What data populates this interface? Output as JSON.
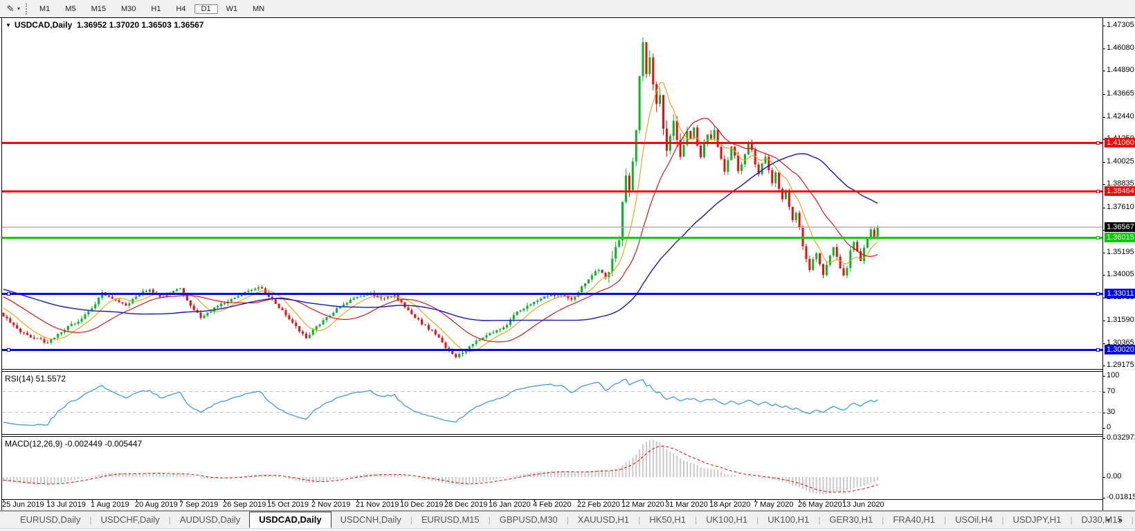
{
  "toolbar": {
    "tool_icon": "drawing-tool",
    "timeframes": [
      {
        "label": "M1",
        "active": false
      },
      {
        "label": "M5",
        "active": false
      },
      {
        "label": "M15",
        "active": false
      },
      {
        "label": "M30",
        "active": false
      },
      {
        "label": "H1",
        "active": false
      },
      {
        "label": "H4",
        "active": false
      },
      {
        "label": "D1",
        "active": true
      },
      {
        "label": "W1",
        "active": false
      },
      {
        "label": "MN",
        "active": false
      }
    ]
  },
  "chart": {
    "symbol_title": "USDCAD,Daily",
    "quotes": "1.36952 1.37020 1.36503 1.36567"
  },
  "price_axis": {
    "ticks": [
      "1.47305",
      "1.46080",
      "1.44890",
      "1.43665",
      "1.42440",
      "1.41250",
      "1.40025",
      "1.38835",
      "1.37610",
      "1.36420",
      "1.35195",
      "1.34005",
      "1.32780",
      "1.31590",
      "1.30365",
      "1.29175"
    ],
    "flags": [
      {
        "label": "1.41060",
        "price": 1.4106,
        "bg": "#ff0000",
        "fg": "#ffffff"
      },
      {
        "label": "1.38464",
        "price": 1.38464,
        "bg": "#ff0000",
        "fg": "#ffffff"
      },
      {
        "label": "1.36567",
        "price": 1.36567,
        "bg": "#000000",
        "fg": "#ffffff"
      },
      {
        "label": "1.36015",
        "price": 1.36015,
        "bg": "#00cc00",
        "fg": "#ffffff"
      },
      {
        "label": "1.33011",
        "price": 1.33011,
        "bg": "#0000ff",
        "fg": "#ffffff"
      },
      {
        "label": "1.30020",
        "price": 1.3002,
        "bg": "#0000ff",
        "fg": "#ffffff"
      }
    ]
  },
  "panels": {
    "rsi": {
      "header": "RSI(14) 51.5572",
      "ticks": [
        {
          "label": "100",
          "value": 100
        },
        {
          "label": "70",
          "value": 70
        },
        {
          "label": "30",
          "value": 30
        },
        {
          "label": "0",
          "value": 0
        }
      ]
    },
    "macd": {
      "header": "MACD(12,26,9) -0.002449 -0.005447",
      "ticks": [
        {
          "label": "0.032972",
          "value": 0.032972
        },
        {
          "label": "0.00",
          "value": 0
        },
        {
          "label": "-0.018154",
          "value": -0.018154
        }
      ]
    }
  },
  "date_axis": [
    "25 Jun 2019",
    "13 Jul 2019",
    "1 Aug 2019",
    "20 Aug 2019",
    "7 Sep 2019",
    "26 Sep 2019",
    "15 Oct 2019",
    "2 Nov 2019",
    "21 Nov 2019",
    "10 Dec 2019",
    "28 Dec 2019",
    "16 Jan 2020",
    "4 Feb 2020",
    "22 Feb 2020",
    "12 Mar 2020",
    "31 Mar 2020",
    "18 Apr 2020",
    "7 May 2020",
    "26 May 2020",
    "13 Jun 2020"
  ],
  "tabs": {
    "items": [
      {
        "label": "EURUSD,Daily",
        "active": false
      },
      {
        "label": "USDCHF,Daily",
        "active": false
      },
      {
        "label": "AUDUSD,Daily",
        "active": false
      },
      {
        "label": "USDCAD,Daily",
        "active": true
      },
      {
        "label": "USDCNH,Daily",
        "active": false
      },
      {
        "label": "EURUSD,M15",
        "active": false
      },
      {
        "label": "GBPUSD,M30",
        "active": false
      },
      {
        "label": "XAUUSD,H1",
        "active": false
      },
      {
        "label": "HK50,H1",
        "active": false
      },
      {
        "label": "UK100,H1",
        "active": false
      },
      {
        "label": "UK100,H1",
        "active": false
      },
      {
        "label": "GER30,H1",
        "active": false
      },
      {
        "label": "FRA40,H1",
        "active": false
      },
      {
        "label": "USOil,H4",
        "active": false
      },
      {
        "label": "USDJPY,H1",
        "active": false
      },
      {
        "label": "DJ30,M15",
        "active": false
      }
    ],
    "left_arrow": "left-scroll",
    "right_arrow": "right-scroll"
  },
  "chart_data": {
    "type": "candlestick",
    "symbol": "USDCAD",
    "timeframe": "Daily",
    "last_quote": {
      "open": 1.36952,
      "high": 1.3702,
      "low": 1.36503,
      "close": 1.36567
    },
    "ylim": [
      1.2899,
      1.4771
    ],
    "bars_total": 258,
    "up_color": "#00b81f",
    "down_color": "#ec0c0c",
    "levels": [
      {
        "price": 1.4106,
        "color": "#ff0000",
        "type": "resistance"
      },
      {
        "price": 1.38464,
        "color": "#ff0000",
        "type": "resistance"
      },
      {
        "price": 1.36015,
        "color": "#00cc00",
        "type": "support"
      },
      {
        "price": 1.33011,
        "color": "#0000ff",
        "type": "support"
      },
      {
        "price": 1.3002,
        "color": "#0000ff",
        "type": "support"
      },
      {
        "price": 1.36567,
        "color": "#b8b8b8",
        "type": "current"
      }
    ],
    "moving_averages": [
      {
        "period": 8,
        "color": "#ff9900"
      },
      {
        "period": 21,
        "color": "#e00000"
      },
      {
        "period": 55,
        "color": "#1515bb"
      }
    ],
    "rsi": {
      "period": 14,
      "value": 51.5572,
      "color": "#3e9cdc",
      "guide_levels": [
        70,
        30
      ],
      "range": [
        0,
        100
      ]
    },
    "macd": {
      "fast": 12,
      "slow": 26,
      "signal": 9,
      "value": -0.002449,
      "signal_value": -0.005447,
      "hist_color": "#c9c9c9",
      "signal_color": "#e00000",
      "axis_max": 0.032972,
      "axis_min": -0.018154
    },
    "history_anchors": [
      [
        -55,
        1.3452
      ],
      [
        -35,
        1.3292
      ],
      [
        -18,
        1.3362
      ],
      [
        -1,
        1.3205
      ]
    ],
    "close_anchors": [
      [
        0,
        1.3185
      ],
      [
        4,
        1.3115
      ],
      [
        8,
        1.3068
      ],
      [
        13,
        1.3042
      ],
      [
        17,
        1.3095
      ],
      [
        22,
        1.316
      ],
      [
        26,
        1.3215
      ],
      [
        29,
        1.3305
      ],
      [
        33,
        1.3268
      ],
      [
        36,
        1.324
      ],
      [
        39,
        1.3292
      ],
      [
        43,
        1.3322
      ],
      [
        47,
        1.3282
      ],
      [
        50,
        1.331
      ],
      [
        52,
        1.3335
      ],
      [
        55,
        1.3232
      ],
      [
        58,
        1.3172
      ],
      [
        62,
        1.3228
      ],
      [
        65,
        1.3252
      ],
      [
        69,
        1.329
      ],
      [
        73,
        1.3325
      ],
      [
        76,
        1.3332
      ],
      [
        78,
        1.3285
      ],
      [
        82,
        1.3205
      ],
      [
        86,
        1.3125
      ],
      [
        89,
        1.3058
      ],
      [
        91,
        1.3108
      ],
      [
        95,
        1.3172
      ],
      [
        99,
        1.3232
      ],
      [
        104,
        1.3282
      ],
      [
        108,
        1.3302
      ],
      [
        112,
        1.3272
      ],
      [
        115,
        1.3296
      ],
      [
        117,
        1.3252
      ],
      [
        120,
        1.3185
      ],
      [
        124,
        1.3132
      ],
      [
        127,
        1.3085
      ],
      [
        130,
        1.3012
      ],
      [
        133,
        1.2962
      ],
      [
        136,
        1.3002
      ],
      [
        139,
        1.3052
      ],
      [
        143,
        1.3082
      ],
      [
        147,
        1.3122
      ],
      [
        151,
        1.3202
      ],
      [
        156,
        1.3262
      ],
      [
        160,
        1.3292
      ],
      [
        164,
        1.3302
      ],
      [
        167,
        1.3262
      ],
      [
        169,
        1.3312
      ],
      [
        171,
        1.3362
      ],
      [
        173,
        1.3402
      ],
      [
        175,
        1.3432
      ],
      [
        177,
        1.3392
      ],
      [
        179,
        1.3482
      ],
      [
        181,
        1.3602
      ],
      [
        182,
        1.3782
      ],
      [
        183,
        1.3922
      ],
      [
        184,
        1.3862
      ],
      [
        185,
        1.4002
      ],
      [
        186,
        1.4182
      ],
      [
        187,
        1.4452
      ],
      [
        188,
        1.4642
      ],
      [
        189,
        1.4482
      ],
      [
        190,
        1.4562
      ],
      [
        191,
        1.4422
      ],
      [
        192,
        1.4302
      ],
      [
        193,
        1.4362
      ],
      [
        194,
        1.4182
      ],
      [
        195,
        1.4062
      ],
      [
        196,
        1.4152
      ],
      [
        197,
        1.4222
      ],
      [
        198,
        1.4102
      ],
      [
        199,
        1.4022
      ],
      [
        200,
        1.4092
      ],
      [
        201,
        1.4172
      ],
      [
        202,
        1.4132
      ],
      [
        203,
        1.4192
      ],
      [
        204,
        1.4082
      ],
      [
        205,
        1.4022
      ],
      [
        206,
        1.4092
      ],
      [
        207,
        1.4142
      ],
      [
        208,
        1.4122
      ],
      [
        209,
        1.4182
      ],
      [
        210,
        1.4092
      ],
      [
        211,
        1.4022
      ],
      [
        212,
        1.3952
      ],
      [
        213,
        1.4012
      ],
      [
        214,
        1.4082
      ],
      [
        215,
        1.4042
      ],
      [
        216,
        1.3962
      ],
      [
        217,
        1.3992
      ],
      [
        218,
        1.4052
      ],
      [
        219,
        1.4112
      ],
      [
        220,
        1.4062
      ],
      [
        221,
        1.3982
      ],
      [
        222,
        1.3932
      ],
      [
        223,
        1.3992
      ],
      [
        224,
        1.4032
      ],
      [
        225,
        1.3962
      ],
      [
        226,
        1.3902
      ],
      [
        227,
        1.3942
      ],
      [
        228,
        1.3862
      ],
      [
        229,
        1.3802
      ],
      [
        230,
        1.3842
      ],
      [
        231,
        1.3762
      ],
      [
        232,
        1.3702
      ],
      [
        233,
        1.3742
      ],
      [
        234,
        1.3652
      ],
      [
        235,
        1.3562
      ],
      [
        236,
        1.3482
      ],
      [
        237,
        1.3422
      ],
      [
        238,
        1.3482
      ],
      [
        239,
        1.3522
      ],
      [
        240,
        1.3462
      ],
      [
        241,
        1.3402
      ],
      [
        242,
        1.3452
      ],
      [
        243,
        1.3502
      ],
      [
        244,
        1.3552
      ],
      [
        245,
        1.3502
      ],
      [
        246,
        1.3442
      ],
      [
        247,
        1.3392
      ],
      [
        248,
        1.3442
      ],
      [
        249,
        1.3542
      ],
      [
        250,
        1.3582
      ],
      [
        251,
        1.3532
      ],
      [
        252,
        1.3482
      ],
      [
        253,
        1.3542
      ],
      [
        254,
        1.3592
      ],
      [
        255,
        1.3642
      ],
      [
        256,
        1.3602
      ],
      [
        257,
        1.36567
      ]
    ]
  }
}
